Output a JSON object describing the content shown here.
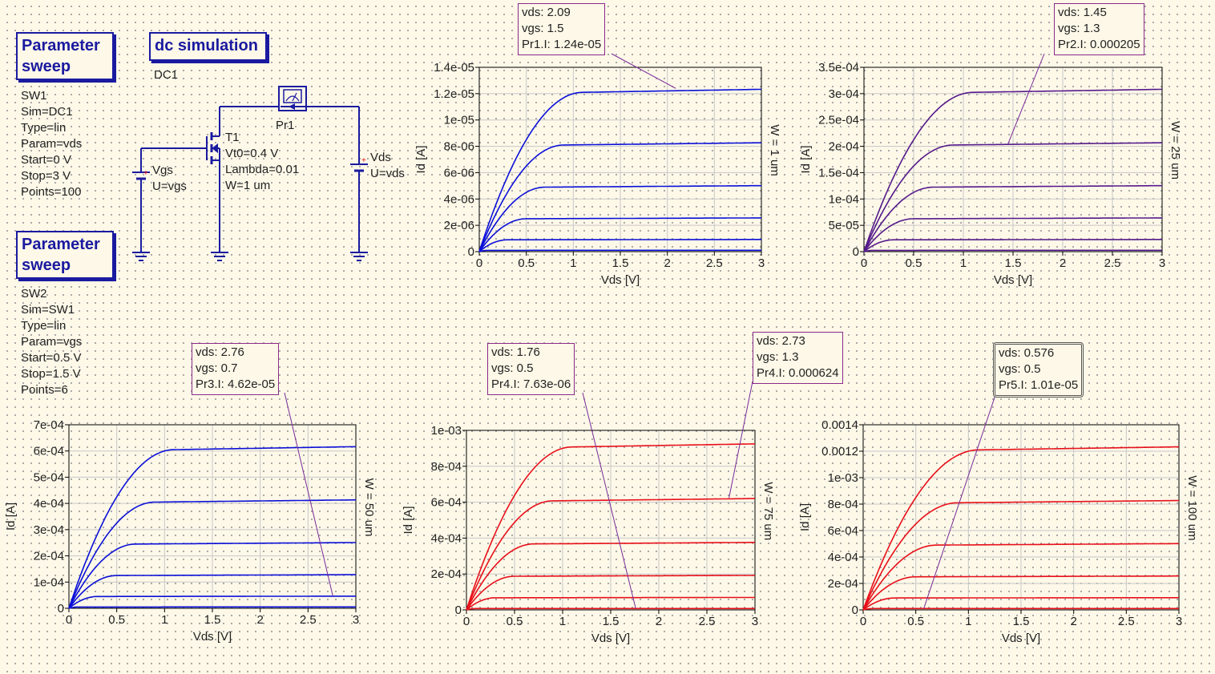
{
  "components": {
    "sweep1": {
      "title_line1": "Parameter",
      "title_line2": "sweep",
      "props": [
        "SW1",
        "Sim=DC1",
        "Type=lin",
        "Param=vds",
        "Start=0 V",
        "Stop=3 V",
        "Points=100"
      ]
    },
    "sweep2": {
      "title_line1": "Parameter",
      "title_line2": "sweep",
      "props": [
        "SW2",
        "Sim=SW1",
        "Type=lin",
        "Param=vgs",
        "Start=0.5 V",
        "Stop=1.5 V",
        "Points=6"
      ]
    },
    "dcsim": {
      "title": "dc simulation",
      "name": "DC1"
    },
    "vgs_source": {
      "name": "Vgs",
      "value": "U=vgs"
    },
    "vds_source": {
      "name": "Vds",
      "value": "U=vds"
    },
    "transistor": {
      "name": "T1",
      "props": [
        "Vt0=0.4 V",
        "Lambda=0.01",
        "W=1 um"
      ]
    },
    "probe": {
      "name": "Pr1"
    }
  },
  "colors": {
    "blue": "#0b10d8",
    "purple": "#551a8b",
    "red": "#e8101a",
    "marker_border": "#8a2a8a",
    "component": "#1a1aa0"
  },
  "chart_data": [
    {
      "id": "w1",
      "type": "line",
      "color": "blue",
      "xlabel": "Vds [V]",
      "ylabel": "Id [A]",
      "right_label": "W = 1 um",
      "xlim": [
        0,
        3
      ],
      "ylim": [
        0,
        1.4e-05
      ],
      "xticks": [
        0,
        0.5,
        1,
        1.5,
        2,
        2.5,
        3
      ],
      "xtick_labels": [
        "0",
        "0.5",
        "1",
        "1.5",
        "2",
        "2.5",
        "3"
      ],
      "yticks": [
        0,
        2e-06,
        4e-06,
        6e-06,
        8e-06,
        1e-05,
        1.2e-05,
        1.4e-05
      ],
      "ytick_labels": [
        "0",
        "2e-06",
        "4e-06",
        "6e-06",
        "8e-06",
        "1e-05",
        "1.2e-05",
        "1.4e-05"
      ],
      "series": [
        {
          "vgs": 0.5,
          "vsat": 0.1,
          "isat": 1e-07
        },
        {
          "vgs": 0.7,
          "vsat": 0.3,
          "isat": 9e-07
        },
        {
          "vgs": 0.9,
          "vsat": 0.5,
          "isat": 2.5e-06
        },
        {
          "vgs": 1.1,
          "vsat": 0.7,
          "isat": 4.9e-06
        },
        {
          "vgs": 1.3,
          "vsat": 0.9,
          "isat": 8.1e-06
        },
        {
          "vgs": 1.5,
          "vsat": 1.1,
          "isat": 1.21e-05
        }
      ],
      "marker": {
        "vds": "vds: 2.09",
        "vgs": "vgs: 1.5",
        "val": "Pr1.I: 1.24e-05",
        "x": 2.09,
        "y": 1.24e-05
      }
    },
    {
      "id": "w25",
      "type": "line",
      "color": "purple",
      "xlabel": "Vds [V]",
      "ylabel": "Id [A]",
      "right_label": "W = 25 um",
      "xlim": [
        0,
        3
      ],
      "ylim": [
        0,
        0.00035
      ],
      "xticks": [
        0,
        0.5,
        1,
        1.5,
        2,
        2.5,
        3
      ],
      "xtick_labels": [
        "0",
        "0.5",
        "1",
        "1.5",
        "2",
        "2.5",
        "3"
      ],
      "yticks": [
        0,
        5e-05,
        0.0001,
        0.00015,
        0.0002,
        0.00025,
        0.0003,
        0.00035
      ],
      "ytick_labels": [
        "0",
        "5e-05",
        "1e-04",
        "1.5e-04",
        "2e-04",
        "2.5e-04",
        "3e-04",
        "3.5e-04"
      ],
      "series": [
        {
          "vgs": 0.5,
          "vsat": 0.1,
          "isat": 2.5e-06
        },
        {
          "vgs": 0.7,
          "vsat": 0.3,
          "isat": 2.25e-05
        },
        {
          "vgs": 0.9,
          "vsat": 0.5,
          "isat": 6.25e-05
        },
        {
          "vgs": 1.1,
          "vsat": 0.7,
          "isat": 0.0001225
        },
        {
          "vgs": 1.3,
          "vsat": 0.9,
          "isat": 0.0002025
        },
        {
          "vgs": 1.5,
          "vsat": 1.1,
          "isat": 0.0003025
        }
      ],
      "marker": {
        "vds": "vds: 1.45",
        "vgs": "vgs: 1.3",
        "val": "Pr2.I: 0.000205",
        "x": 1.45,
        "y": 0.000205
      }
    },
    {
      "id": "w50",
      "type": "line",
      "color": "blue",
      "xlabel": "Vds [V]",
      "ylabel": "Id [A]",
      "right_label": "W = 50 um",
      "xlim": [
        0,
        3
      ],
      "ylim": [
        0,
        0.0007
      ],
      "xticks": [
        0,
        0.5,
        1,
        1.5,
        2,
        2.5,
        3
      ],
      "xtick_labels": [
        "0",
        "0.5",
        "1",
        "1.5",
        "2",
        "2.5",
        "3"
      ],
      "yticks": [
        0,
        0.0001,
        0.0002,
        0.0003,
        0.0004,
        0.0005,
        0.0006,
        0.0007
      ],
      "ytick_labels": [
        "0",
        "1e-04",
        "2e-04",
        "3e-04",
        "4e-04",
        "5e-04",
        "6e-04",
        "7e-04"
      ],
      "series": [
        {
          "vgs": 0.5,
          "vsat": 0.1,
          "isat": 5e-06
        },
        {
          "vgs": 0.7,
          "vsat": 0.3,
          "isat": 4.5e-05
        },
        {
          "vgs": 0.9,
          "vsat": 0.5,
          "isat": 0.000125
        },
        {
          "vgs": 1.1,
          "vsat": 0.7,
          "isat": 0.000245
        },
        {
          "vgs": 1.3,
          "vsat": 0.9,
          "isat": 0.000405
        },
        {
          "vgs": 1.5,
          "vsat": 1.1,
          "isat": 0.000605
        }
      ],
      "marker": {
        "vds": "vds: 2.76",
        "vgs": "vgs: 0.7",
        "val": "Pr3.I: 4.62e-05",
        "x": 2.76,
        "y": 4.62e-05
      }
    },
    {
      "id": "w75",
      "type": "line",
      "color": "red",
      "xlabel": "Vds [V]",
      "ylabel": "Id [A]",
      "right_label": "W = 75 um",
      "xlim": [
        0,
        3
      ],
      "ylim": [
        0,
        0.001
      ],
      "xticks": [
        0,
        0.5,
        1,
        1.5,
        2,
        2.5,
        3
      ],
      "xtick_labels": [
        "0",
        "0.5",
        "1",
        "1.5",
        "2",
        "2.5",
        "3"
      ],
      "yticks": [
        0,
        0.0002,
        0.0004,
        0.0006,
        0.0008,
        0.001
      ],
      "ytick_labels": [
        "0",
        "2e-04",
        "4e-04",
        "6e-04",
        "8e-04",
        "1e-03"
      ],
      "series": [
        {
          "vgs": 0.5,
          "vsat": 0.1,
          "isat": 7.5e-06
        },
        {
          "vgs": 0.7,
          "vsat": 0.3,
          "isat": 6.75e-05
        },
        {
          "vgs": 0.9,
          "vsat": 0.5,
          "isat": 0.0001875
        },
        {
          "vgs": 1.1,
          "vsat": 0.7,
          "isat": 0.0003675
        },
        {
          "vgs": 1.3,
          "vsat": 0.9,
          "isat": 0.0006075
        },
        {
          "vgs": 1.5,
          "vsat": 1.1,
          "isat": 0.0009075
        }
      ],
      "markers": [
        {
          "vds": "vds: 1.76",
          "vgs": "vgs: 0.5",
          "val": "Pr4.I: 7.63e-06",
          "x": 1.76,
          "y": 7.63e-06
        },
        {
          "vds": "vds: 2.73",
          "vgs": "vgs: 1.3",
          "val": "Pr4.I: 0.000624",
          "x": 2.73,
          "y": 0.000624
        }
      ]
    },
    {
      "id": "w100",
      "type": "line",
      "color": "red",
      "xlabel": "Vds [V]",
      "ylabel": "Id [A]",
      "right_label": "W = 100 um",
      "xlim": [
        0,
        3
      ],
      "ylim": [
        0,
        0.0014
      ],
      "xticks": [
        0,
        0.5,
        1,
        1.5,
        2,
        2.5,
        3
      ],
      "xtick_labels": [
        "0",
        "0.5",
        "1",
        "1.5",
        "2",
        "2.5",
        "3"
      ],
      "yticks": [
        0,
        0.0002,
        0.0004,
        0.0006,
        0.0008,
        0.001,
        0.0012,
        0.0014
      ],
      "ytick_labels": [
        "0",
        "2e-04",
        "4e-04",
        "6e-04",
        "8e-04",
        "1e-03",
        "0.0012",
        "0.0014"
      ],
      "series": [
        {
          "vgs": 0.5,
          "vsat": 0.1,
          "isat": 1e-05
        },
        {
          "vgs": 0.7,
          "vsat": 0.3,
          "isat": 9e-05
        },
        {
          "vgs": 0.9,
          "vsat": 0.5,
          "isat": 0.00025
        },
        {
          "vgs": 1.1,
          "vsat": 0.7,
          "isat": 0.00049
        },
        {
          "vgs": 1.3,
          "vsat": 0.9,
          "isat": 0.00081
        },
        {
          "vgs": 1.5,
          "vsat": 1.1,
          "isat": 0.00121
        }
      ],
      "marker": {
        "vds": "vds: 0.576",
        "vgs": "vgs: 0.5",
        "val": "Pr5.I: 1.01e-05",
        "x": 0.576,
        "y": 1.01e-05
      }
    }
  ]
}
